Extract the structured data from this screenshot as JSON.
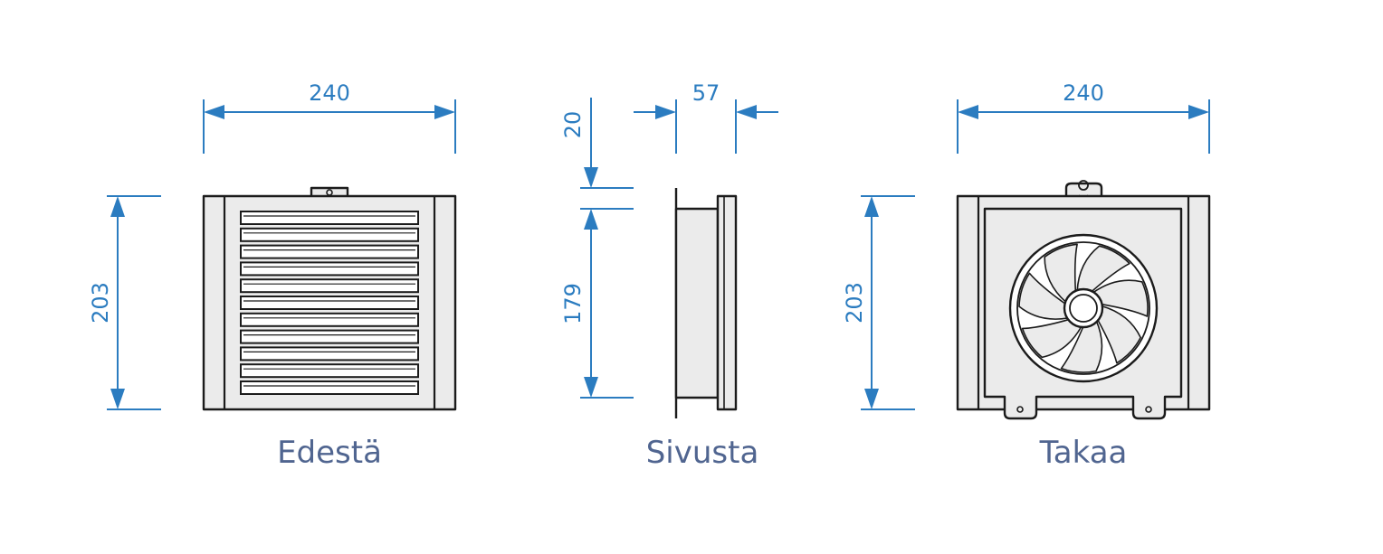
{
  "views": {
    "front": {
      "label": "Edestä"
    },
    "side": {
      "label": "Sivusta"
    },
    "back": {
      "label": "Takaa"
    }
  },
  "dimensions": {
    "front_width": "240",
    "front_height": "203",
    "side_depth": "57",
    "side_top_offset": "20",
    "side_body_height": "179",
    "back_width": "240",
    "back_height": "203"
  },
  "colors": {
    "dimension": "#2b7cc0",
    "label": "#506590",
    "outline": "#1b1b1b",
    "body_fill": "#ebebeb"
  }
}
